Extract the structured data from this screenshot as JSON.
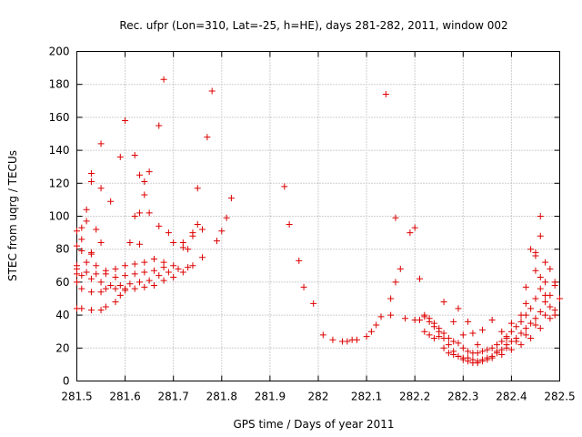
{
  "chart_data": {
    "type": "scatter",
    "title": "Rec. ufpr (Lon=310, Lat=-25, h=HE), days 281-282, 2011, window 002",
    "xlabel": "GPS time / Days of year 2011",
    "ylabel": "STEC from uqrg / TECUs",
    "xlim": [
      281.5,
      282.5
    ],
    "ylim": [
      0,
      200
    ],
    "grid": true,
    "marker": "plus",
    "color": "#dd0000",
    "x_ticks": [
      "281.5",
      "281.6",
      "281.7",
      "281.8",
      "281.9",
      "282",
      "282.1",
      "282.2",
      "282.3",
      "282.4",
      "282.5"
    ],
    "y_ticks": [
      "0",
      "20",
      "40",
      "60",
      "80",
      "100",
      "120",
      "140",
      "160",
      "180",
      "200"
    ],
    "points": [
      [
        281.5,
        44
      ],
      [
        281.51,
        44
      ],
      [
        281.53,
        43
      ],
      [
        281.55,
        43
      ],
      [
        281.56,
        45
      ],
      [
        281.58,
        48
      ],
      [
        281.59,
        52
      ],
      [
        281.6,
        55
      ],
      [
        281.5,
        60
      ],
      [
        281.51,
        56
      ],
      [
        281.53,
        54
      ],
      [
        281.55,
        54
      ],
      [
        281.56,
        56
      ],
      [
        281.58,
        56
      ],
      [
        281.6,
        56
      ],
      [
        281.62,
        56
      ],
      [
        281.64,
        57
      ],
      [
        281.66,
        58
      ],
      [
        281.68,
        61
      ],
      [
        281.7,
        63
      ],
      [
        281.72,
        66
      ],
      [
        281.74,
        70
      ],
      [
        281.76,
        75
      ],
      [
        281.5,
        65
      ],
      [
        281.51,
        64
      ],
      [
        281.53,
        62
      ],
      [
        281.55,
        60
      ],
      [
        281.57,
        58
      ],
      [
        281.59,
        58
      ],
      [
        281.61,
        59
      ],
      [
        281.63,
        60
      ],
      [
        281.65,
        61
      ],
      [
        281.67,
        64
      ],
      [
        281.69,
        66
      ],
      [
        281.71,
        68
      ],
      [
        281.73,
        69
      ],
      [
        281.5,
        70
      ],
      [
        281.52,
        66
      ],
      [
        281.54,
        65
      ],
      [
        281.56,
        65
      ],
      [
        281.58,
        63
      ],
      [
        281.6,
        64
      ],
      [
        281.62,
        65
      ],
      [
        281.64,
        66
      ],
      [
        281.66,
        67
      ],
      [
        281.68,
        69
      ],
      [
        281.7,
        70
      ],
      [
        281.5,
        68
      ],
      [
        281.52,
        72
      ],
      [
        281.54,
        70
      ],
      [
        281.56,
        67
      ],
      [
        281.58,
        68
      ],
      [
        281.6,
        70
      ],
      [
        281.62,
        71
      ],
      [
        281.64,
        72
      ],
      [
        281.66,
        74
      ],
      [
        281.68,
        72
      ],
      [
        281.72,
        81
      ],
      [
        281.74,
        88
      ],
      [
        281.5,
        82
      ],
      [
        281.51,
        79
      ],
      [
        281.53,
        78
      ],
      [
        281.55,
        84
      ],
      [
        281.51,
        86
      ],
      [
        281.53,
        77
      ],
      [
        281.5,
        91
      ],
      [
        281.51,
        93
      ],
      [
        281.52,
        97
      ],
      [
        281.52,
        104
      ],
      [
        281.54,
        92
      ],
      [
        281.53,
        121
      ],
      [
        281.53,
        126
      ],
      [
        281.55,
        117
      ],
      [
        281.55,
        144
      ],
      [
        281.57,
        109
      ],
      [
        281.59,
        136
      ],
      [
        281.6,
        158
      ],
      [
        281.62,
        137
      ],
      [
        281.61,
        84
      ],
      [
        281.63,
        83
      ],
      [
        281.62,
        100
      ],
      [
        281.63,
        102
      ],
      [
        281.64,
        113
      ],
      [
        281.64,
        121
      ],
      [
        281.63,
        125
      ],
      [
        281.65,
        102
      ],
      [
        281.65,
        127
      ],
      [
        281.67,
        94
      ],
      [
        281.67,
        155
      ],
      [
        281.68,
        183
      ],
      [
        281.69,
        90
      ],
      [
        281.7,
        84
      ],
      [
        281.72,
        84
      ],
      [
        281.73,
        80
      ],
      [
        281.74,
        90
      ],
      [
        281.75,
        95
      ],
      [
        281.75,
        117
      ],
      [
        281.76,
        92
      ],
      [
        281.77,
        148
      ],
      [
        281.78,
        176
      ],
      [
        281.79,
        85
      ],
      [
        281.8,
        91
      ],
      [
        281.81,
        99
      ],
      [
        281.82,
        111
      ],
      [
        281.93,
        118
      ],
      [
        281.94,
        95
      ],
      [
        281.96,
        73
      ],
      [
        281.97,
        57
      ],
      [
        281.99,
        47
      ],
      [
        282.01,
        28
      ],
      [
        282.03,
        25
      ],
      [
        282.05,
        24
      ],
      [
        282.06,
        24
      ],
      [
        282.07,
        25
      ],
      [
        282.08,
        25
      ],
      [
        282.1,
        27
      ],
      [
        282.11,
        30
      ],
      [
        282.12,
        34
      ],
      [
        282.13,
        39
      ],
      [
        282.14,
        174
      ],
      [
        282.15,
        40
      ],
      [
        282.15,
        50
      ],
      [
        282.16,
        99
      ],
      [
        282.16,
        60
      ],
      [
        282.17,
        68
      ],
      [
        282.18,
        38
      ],
      [
        282.19,
        90
      ],
      [
        282.2,
        37
      ],
      [
        282.2,
        93
      ],
      [
        282.21,
        62
      ],
      [
        282.22,
        40
      ],
      [
        282.23,
        38
      ],
      [
        282.24,
        35
      ],
      [
        282.25,
        32
      ],
      [
        282.26,
        29
      ],
      [
        282.27,
        26
      ],
      [
        282.28,
        24
      ],
      [
        282.29,
        23
      ],
      [
        282.3,
        20
      ],
      [
        282.31,
        18
      ],
      [
        282.32,
        17
      ],
      [
        282.33,
        17
      ],
      [
        282.34,
        18
      ],
      [
        282.35,
        19
      ],
      [
        282.36,
        20
      ],
      [
        282.37,
        22
      ],
      [
        282.38,
        24
      ],
      [
        282.39,
        27
      ],
      [
        282.4,
        30
      ],
      [
        282.41,
        33
      ],
      [
        282.42,
        36
      ],
      [
        282.43,
        40
      ],
      [
        282.44,
        44
      ],
      [
        282.45,
        50
      ],
      [
        282.46,
        56
      ],
      [
        282.47,
        60
      ],
      [
        282.21,
        37
      ],
      [
        282.22,
        39
      ],
      [
        282.23,
        36
      ],
      [
        282.24,
        33
      ],
      [
        282.25,
        30
      ],
      [
        282.26,
        26
      ],
      [
        282.27,
        22
      ],
      [
        282.28,
        18
      ],
      [
        282.29,
        15
      ],
      [
        282.3,
        13
      ],
      [
        282.31,
        12
      ],
      [
        282.32,
        11
      ],
      [
        282.33,
        11
      ],
      [
        282.34,
        12
      ],
      [
        282.35,
        13
      ],
      [
        282.36,
        15
      ],
      [
        282.37,
        17
      ],
      [
        282.38,
        19
      ],
      [
        282.39,
        22
      ],
      [
        282.4,
        24
      ],
      [
        282.41,
        26
      ],
      [
        282.42,
        29
      ],
      [
        282.43,
        32
      ],
      [
        282.44,
        35
      ],
      [
        282.45,
        38
      ],
      [
        282.46,
        42
      ],
      [
        282.47,
        48
      ],
      [
        282.48,
        52
      ],
      [
        282.49,
        60
      ],
      [
        282.22,
        30
      ],
      [
        282.24,
        26
      ],
      [
        282.26,
        20
      ],
      [
        282.28,
        16
      ],
      [
        282.3,
        14
      ],
      [
        282.32,
        13
      ],
      [
        282.34,
        13
      ],
      [
        282.36,
        14
      ],
      [
        282.38,
        16
      ],
      [
        282.4,
        19
      ],
      [
        282.42,
        22
      ],
      [
        282.44,
        26
      ],
      [
        282.46,
        32
      ],
      [
        282.48,
        38
      ],
      [
        282.49,
        43
      ],
      [
        282.23,
        28
      ],
      [
        282.25,
        27
      ],
      [
        282.27,
        17
      ],
      [
        282.29,
        15
      ],
      [
        282.31,
        14
      ],
      [
        282.33,
        12
      ],
      [
        282.35,
        14
      ],
      [
        282.37,
        18
      ],
      [
        282.39,
        20
      ],
      [
        282.41,
        24
      ],
      [
        282.43,
        28
      ],
      [
        282.45,
        34
      ],
      [
        282.47,
        40
      ],
      [
        282.49,
        40
      ],
      [
        282.26,
        48
      ],
      [
        282.28,
        36
      ],
      [
        282.29,
        44
      ],
      [
        282.3,
        28
      ],
      [
        282.31,
        36
      ],
      [
        282.32,
        29
      ],
      [
        282.33,
        22
      ],
      [
        282.34,
        31
      ],
      [
        282.36,
        37
      ],
      [
        282.38,
        30
      ],
      [
        282.39,
        26
      ],
      [
        282.4,
        35
      ],
      [
        282.42,
        40
      ],
      [
        282.43,
        47
      ],
      [
        282.43,
        57
      ],
      [
        282.44,
        80
      ],
      [
        282.45,
        78
      ],
      [
        282.45,
        67
      ],
      [
        282.45,
        76
      ],
      [
        282.46,
        88
      ],
      [
        282.46,
        100
      ],
      [
        282.47,
        72
      ],
      [
        282.48,
        68
      ],
      [
        282.48,
        45
      ],
      [
        282.49,
        58
      ],
      [
        282.5,
        50
      ],
      [
        282.47,
        52
      ],
      [
        282.46,
        63
      ]
    ]
  }
}
